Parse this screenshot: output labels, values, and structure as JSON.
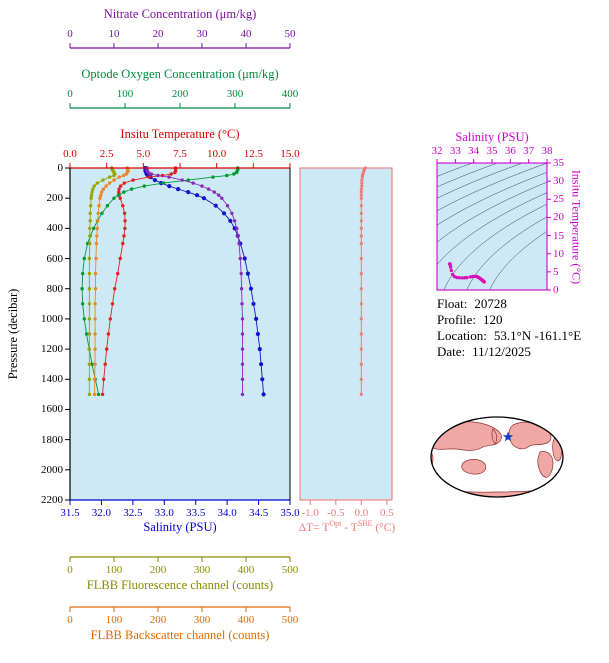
{
  "colors": {
    "plot_bg": "#cde9f6",
    "contour": "#3a3a6a",
    "map_land": "#f0a8a4",
    "map_border": "#8f2f2f",
    "map_ocean": "#ffffff",
    "star": "#1440c8"
  },
  "axes": {
    "nitrate": {
      "title": "Nitrate Concentration (μm/kg)",
      "color": "#7d0f9e",
      "min": 0,
      "max": 50,
      "ticks": [
        "0",
        "10",
        "20",
        "30",
        "40",
        "50"
      ]
    },
    "oxygen": {
      "title": "Optode Oxygen Concentration (μm/kg)",
      "color": "#008a3e",
      "min": 0,
      "max": 400,
      "ticks": [
        "0",
        "100",
        "200",
        "300",
        "400"
      ]
    },
    "temperature": {
      "title": "Insitu Temperature (°C)",
      "color": "#d80000",
      "min": 0,
      "max": 15,
      "ticks": [
        "0.0",
        "2.5",
        "5.0",
        "7.5",
        "10.0",
        "12.5",
        "15.0"
      ]
    },
    "pressure": {
      "title": "Pressure (decibar)",
      "color": "#000000",
      "min": 0,
      "max": 2200,
      "ticks": [
        "0",
        "200",
        "400",
        "600",
        "800",
        "1000",
        "1200",
        "1400",
        "1600",
        "1800",
        "2000",
        "2200"
      ]
    },
    "salinity": {
      "title": "Salinity (PSU)",
      "color": "#0000d8",
      "min": 31.5,
      "max": 35.0,
      "ticks": [
        "31.5",
        "32.0",
        "32.5",
        "33.0",
        "33.5",
        "34.0",
        "34.5",
        "35.0"
      ]
    },
    "fluorescence": {
      "title": "FLBB Fluorescence channel (counts)",
      "color": "#8a8a00",
      "min": 0,
      "max": 500,
      "ticks": [
        "0",
        "100",
        "200",
        "300",
        "400",
        "500"
      ]
    },
    "backscatter": {
      "title": "FLBB Backscatter channel (counts)",
      "color": "#e06a00",
      "min": 0,
      "max": 500,
      "ticks": [
        "0",
        "100",
        "200",
        "300",
        "400",
        "500"
      ]
    },
    "delta_t": {
      "color": "#ef7b7b",
      "min": -1.2,
      "max": 0.6,
      "ticks": [
        "-1.0",
        "-0.5",
        "0.0",
        "0.5"
      ],
      "title_parts": {
        "p1": "ΔT= T",
        "sup1": "Opt",
        "p2": " - T",
        "sup2": "SBE",
        "p3": " (°C)"
      }
    },
    "ts_salinity": {
      "title": "Salinity (PSU)",
      "color": "#cc00cc",
      "min": 32,
      "max": 38,
      "ticks": [
        "32",
        "33",
        "34",
        "35",
        "36",
        "37",
        "38"
      ]
    },
    "ts_temperature": {
      "title": "Insitu Temperature (°C)",
      "color": "#cc00cc",
      "min": 0,
      "max": 35,
      "ticks": [
        "0",
        "5",
        "10",
        "15",
        "20",
        "25",
        "30",
        "35"
      ]
    }
  },
  "info": {
    "rows": [
      {
        "label": "Float:",
        "value": "20728"
      },
      {
        "label": "Profile:",
        "value": "120"
      },
      {
        "label": "Location:",
        "value": "53.1°N -161.1°E"
      },
      {
        "label": "Date:",
        "value": "11/12/2025"
      }
    ]
  },
  "chart_data": [
    {
      "type": "line",
      "id": "pressure-profiles",
      "ylabel": "Pressure (decibar)",
      "ylim": [
        0,
        2200
      ],
      "pressure": [
        0,
        10,
        20,
        30,
        40,
        50,
        60,
        80,
        100,
        120,
        140,
        160,
        180,
        200,
        250,
        300,
        350,
        400,
        450,
        500,
        600,
        700,
        800,
        900,
        1000,
        1100,
        1200,
        1300,
        1400,
        1500
      ],
      "series": [
        {
          "key": "salinity",
          "name": "Salinity (PSU)",
          "xlim": [
            31.5,
            35.0
          ],
          "color": "#1414cc",
          "values": [
            32.7,
            32.7,
            32.7,
            32.71,
            32.72,
            32.74,
            32.78,
            32.85,
            32.95,
            33.08,
            33.22,
            33.38,
            33.52,
            33.63,
            33.82,
            33.95,
            34.05,
            34.12,
            34.17,
            34.21,
            34.28,
            34.33,
            34.38,
            34.42,
            34.46,
            34.49,
            34.52,
            34.54,
            34.56,
            34.58
          ]
        },
        {
          "key": "temperature",
          "name": "Insitu Temperature (°C)",
          "xlim": [
            0,
            15
          ],
          "color": "#e02020",
          "values": [
            7.2,
            7.2,
            7.2,
            7.15,
            6.9,
            6.3,
            5.4,
            4.3,
            3.7,
            3.45,
            3.35,
            3.33,
            3.35,
            3.42,
            3.6,
            3.72,
            3.76,
            3.74,
            3.68,
            3.6,
            3.42,
            3.25,
            3.05,
            2.9,
            2.75,
            2.62,
            2.5,
            2.4,
            2.3,
            2.22
          ]
        },
        {
          "key": "oxygen",
          "name": "Optode Oxygen Concentration (μm/kg)",
          "xlim": [
            0,
            400
          ],
          "color": "#009933",
          "values": [
            305,
            305,
            304,
            303,
            298,
            285,
            260,
            215,
            170,
            135,
            112,
            98,
            88,
            80,
            68,
            58,
            50,
            43,
            37,
            32,
            26,
            23,
            22,
            23,
            26,
            30,
            35,
            40,
            46,
            52
          ]
        },
        {
          "key": "nitrate",
          "name": "Nitrate Concentration (μm/kg)",
          "xlim": [
            0,
            50
          ],
          "color": "#8a2bb8",
          "values": [
            17.5,
            17.5,
            17.6,
            17.8,
            18.5,
            20.0,
            22.5,
            25.5,
            28.0,
            30.0,
            31.5,
            32.8,
            33.8,
            34.5,
            35.8,
            36.8,
            37.4,
            37.9,
            38.2,
            38.4,
            38.7,
            38.9,
            39.0,
            39.1,
            39.2,
            39.2,
            39.2,
            39.2,
            39.2,
            39.2
          ]
        },
        {
          "key": "fluorescence",
          "name": "FLBB Fluorescence channel (counts)",
          "xlim": [
            0,
            500
          ],
          "color": "#9aa500",
          "values": [
            95,
            96,
            98,
            100,
            102,
            100,
            90,
            75,
            62,
            55,
            52,
            50,
            49,
            48,
            47,
            46,
            46,
            45,
            45,
            45,
            44,
            44,
            44,
            44,
            44,
            44,
            44,
            44,
            44,
            44
          ]
        },
        {
          "key": "backscatter",
          "name": "FLBB Backscatter channel (counts)",
          "xlim": [
            0,
            500
          ],
          "color": "#ef8420",
          "values": [
            130,
            131,
            132,
            130,
            128,
            122,
            112,
            100,
            90,
            82,
            76,
            72,
            70,
            68,
            66,
            64,
            63,
            62,
            61,
            60,
            59,
            58,
            58,
            57,
            57,
            57,
            57,
            57,
            56,
            56
          ]
        }
      ]
    },
    {
      "type": "line",
      "id": "delta-t-profile",
      "xlabel": "ΔT= TOpt - TSBE (°C)",
      "xlim": [
        -1.2,
        0.6
      ],
      "ylim": [
        0,
        2200
      ],
      "color": "#ef7b7b",
      "pressure": [
        0,
        10,
        20,
        30,
        40,
        50,
        60,
        80,
        100,
        120,
        140,
        160,
        180,
        200,
        250,
        300,
        350,
        400,
        450,
        500,
        600,
        700,
        800,
        900,
        1000,
        1100,
        1200,
        1300,
        1400,
        1500
      ],
      "values": [
        0.08,
        0.06,
        0.05,
        0.04,
        0.03,
        0.02,
        0.02,
        0.01,
        0.01,
        0.01,
        0.0,
        0.0,
        0.0,
        0.0,
        0.0,
        0.0,
        0.0,
        0.0,
        0.0,
        0.0,
        0.0,
        0.0,
        0.0,
        0.0,
        0.0,
        0.0,
        0.0,
        0.0,
        0.0,
        0.0
      ]
    },
    {
      "type": "scatter",
      "id": "ts-diagram",
      "xlabel": "Salinity (PSU)",
      "ylabel": "Insitu Temperature (°C)",
      "xlim": [
        32,
        38
      ],
      "ylim": [
        0,
        35
      ],
      "x_key": "salinity",
      "y_key": "temperature",
      "marker_color": "#d813b4",
      "contour_levels": [
        19,
        20,
        21,
        22,
        23,
        24,
        25,
        26,
        27,
        28
      ]
    }
  ]
}
